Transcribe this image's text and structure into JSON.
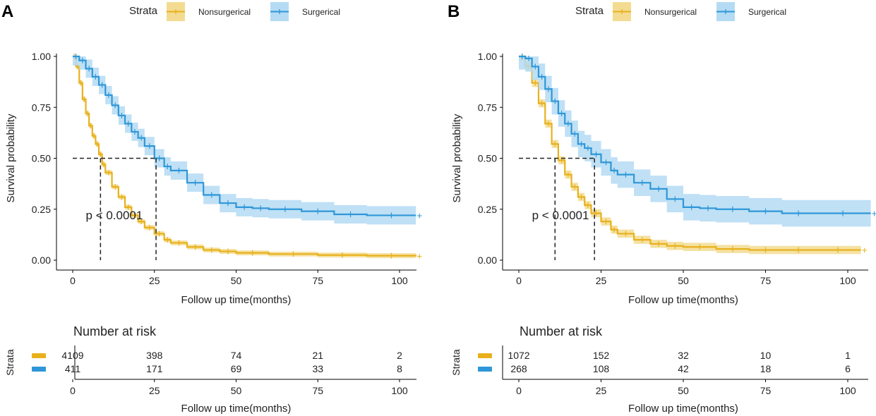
{
  "colors": {
    "nonsurgical": "#e8b11c",
    "surgical": "#2f97d8",
    "nonsurgical_band": "#f3dc92",
    "surgical_band": "#b4dbf3"
  },
  "chart_data": [
    {
      "panel_label": "A",
      "type": "line",
      "subtype": "kaplan-meier",
      "legend": {
        "title": "Strata",
        "entries": [
          "Nonsurgerical",
          "Surgerical"
        ],
        "placement": "top"
      },
      "xlabel": "Follow up time(months)",
      "ylabel": "Survival probability",
      "xlim": [
        0,
        105
      ],
      "ylim": [
        0,
        1
      ],
      "xticks": [
        0,
        25,
        50,
        75,
        100
      ],
      "yticks": [
        0,
        0.25,
        0.5,
        0.75,
        1.0
      ],
      "ytick_labels": [
        "0.00",
        "0.25",
        "0.50",
        "0.75",
        "1.00"
      ],
      "pvalue": "p < 0.0001",
      "median_lines": [
        8.5,
        25.5
      ],
      "series": [
        {
          "name": "Nonsurgerical",
          "color_key": "nonsurgical",
          "band": 0.012,
          "x": [
            0,
            1,
            2,
            3,
            4,
            5,
            6,
            7,
            8,
            9,
            10,
            12,
            14,
            16,
            18,
            20,
            22,
            25,
            28,
            30,
            35,
            40,
            45,
            50,
            60,
            75,
            90,
            105
          ],
          "y": [
            1.0,
            0.95,
            0.87,
            0.79,
            0.72,
            0.66,
            0.61,
            0.57,
            0.52,
            0.47,
            0.43,
            0.36,
            0.31,
            0.26,
            0.22,
            0.19,
            0.16,
            0.13,
            0.1,
            0.085,
            0.065,
            0.05,
            0.043,
            0.036,
            0.03,
            0.025,
            0.022,
            0.02
          ]
        },
        {
          "name": "Surgerical",
          "color_key": "surgical",
          "band": 0.045,
          "x": [
            0,
            2,
            4,
            6,
            8,
            10,
            12,
            14,
            16,
            18,
            20,
            22,
            25,
            28,
            30,
            35,
            40,
            45,
            50,
            55,
            60,
            70,
            80,
            90,
            105
          ],
          "y": [
            1.0,
            0.98,
            0.94,
            0.9,
            0.86,
            0.81,
            0.76,
            0.71,
            0.67,
            0.63,
            0.6,
            0.56,
            0.5,
            0.46,
            0.44,
            0.38,
            0.32,
            0.28,
            0.26,
            0.255,
            0.25,
            0.24,
            0.225,
            0.22,
            0.22
          ]
        }
      ],
      "risk_table": {
        "title": "Number at risk",
        "ylabel": "Strata",
        "xlabel": "Follow up time(months)",
        "times": [
          0,
          25,
          50,
          75,
          100
        ],
        "rows": [
          {
            "color_key": "nonsurgical",
            "values": [
              "4109",
              "398",
              "74",
              "21",
              "2"
            ]
          },
          {
            "color_key": "surgical",
            "values": [
              "411",
              "171",
              "69",
              "33",
              "8"
            ]
          }
        ]
      }
    },
    {
      "panel_label": "B",
      "type": "line",
      "subtype": "kaplan-meier",
      "legend": {
        "title": "Strata",
        "entries": [
          "Nonsurgerical",
          "Surgerical"
        ],
        "placement": "top"
      },
      "xlabel": "Follow up time(months)",
      "ylabel": "Survival probability",
      "xlim": [
        0,
        105
      ],
      "ylim": [
        0,
        1
      ],
      "xticks": [
        0,
        25,
        50,
        75,
        100
      ],
      "yticks": [
        0,
        0.25,
        0.5,
        0.75,
        1.0
      ],
      "ytick_labels": [
        "0.00",
        "0.25",
        "0.50",
        "0.75",
        "1.00"
      ],
      "pvalue": "p < 0.0001",
      "median_lines": [
        11,
        23
      ],
      "series": [
        {
          "name": "Nonsurgerical",
          "color_key": "nonsurgical",
          "band": 0.02,
          "x": [
            0,
            2,
            4,
            6,
            8,
            10,
            12,
            14,
            16,
            18,
            20,
            22,
            25,
            28,
            30,
            35,
            40,
            45,
            50,
            60,
            70,
            80,
            90,
            104
          ],
          "y": [
            1.0,
            0.95,
            0.87,
            0.77,
            0.67,
            0.57,
            0.49,
            0.42,
            0.36,
            0.31,
            0.27,
            0.23,
            0.19,
            0.15,
            0.13,
            0.1,
            0.08,
            0.07,
            0.065,
            0.055,
            0.05,
            0.05,
            0.05,
            0.05
          ]
        },
        {
          "name": "Surgerical",
          "color_key": "surgical",
          "band": 0.065,
          "x": [
            0,
            2,
            4,
            6,
            8,
            10,
            12,
            14,
            16,
            18,
            20,
            22,
            25,
            28,
            30,
            35,
            40,
            45,
            50,
            55,
            60,
            70,
            80,
            90,
            107
          ],
          "y": [
            1.0,
            0.99,
            0.95,
            0.9,
            0.84,
            0.78,
            0.72,
            0.67,
            0.62,
            0.57,
            0.55,
            0.52,
            0.48,
            0.44,
            0.42,
            0.38,
            0.35,
            0.3,
            0.26,
            0.255,
            0.25,
            0.24,
            0.23,
            0.23,
            0.23
          ]
        }
      ],
      "risk_table": {
        "title": "Number at risk",
        "ylabel": "Strata",
        "xlabel": "Follow up time(months)",
        "times": [
          0,
          25,
          50,
          75,
          100
        ],
        "rows": [
          {
            "color_key": "nonsurgical",
            "values": [
              "1072",
              "152",
              "32",
              "10",
              "1"
            ]
          },
          {
            "color_key": "surgical",
            "values": [
              "268",
              "108",
              "42",
              "18",
              "6"
            ]
          }
        ]
      }
    }
  ]
}
